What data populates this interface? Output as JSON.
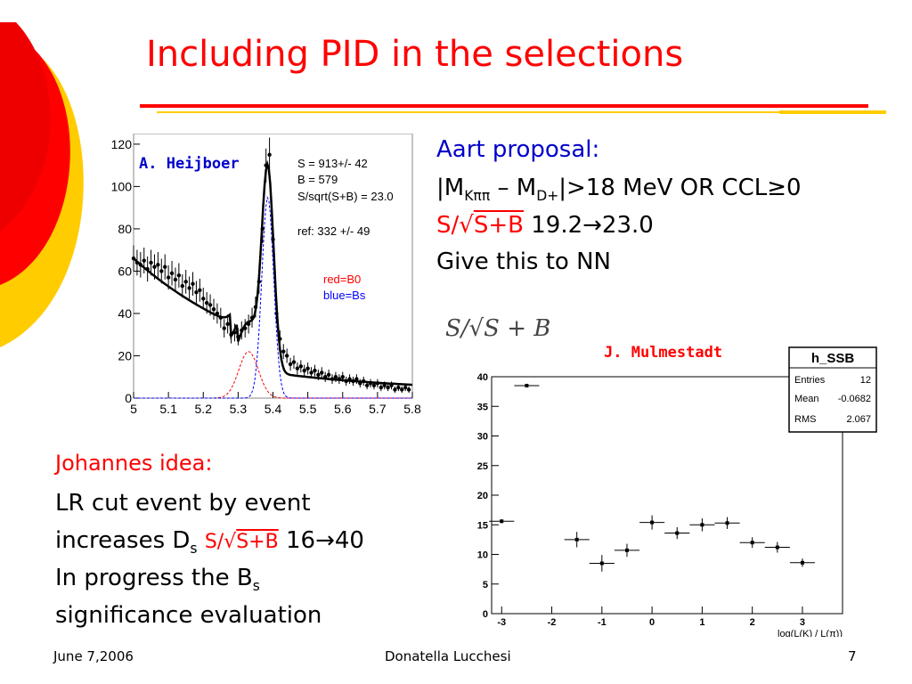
{
  "slide": {
    "title": "Including PID in the selections",
    "page_number": "7",
    "footer_date": "June 7,2006",
    "footer_author": "Donatella Lucchesi",
    "accent_red": "#ff0000",
    "accent_yellow": "#ffcc00"
  },
  "aart": {
    "heading": "Aart proposal:",
    "cut_prefix": "|M",
    "cut_sub1": "Kππ",
    "cut_mid": " – M",
    "cut_sub2": "D+",
    "cut_suffix": "|>18 MeV OR CCL≥0",
    "ratio_label": "S/√",
    "ratio_den": "S+B",
    "ratio_value": "19.2→23.0",
    "line4": "Give this to NN"
  },
  "johannes": {
    "heading": "Johannes idea:",
    "line1": "LR cut event by event",
    "line2_prefix": "increases D",
    "line2_sub": "s",
    "ratio_label": "S/√",
    "ratio_den": "S+B",
    "ratio_value": "16→40",
    "line3_prefix": "In progress the B",
    "line3_sub": "s",
    "line4": "significance evaluation"
  },
  "fig1": {
    "author_label": "A. Heijboer",
    "stats": [
      "S =  913+/- 42",
      "B =  579",
      "S/sqrt(S+B) = 23.0"
    ],
    "ref": "ref: 332 +/- 49",
    "legend_red": "red=B0",
    "legend_blue": "blue=Bs",
    "chart_data": {
      "type": "scatter",
      "xlim": [
        5.0,
        5.8
      ],
      "ylim": [
        0,
        125
      ],
      "x_ticks": [
        "5",
        "5.1",
        "5.2",
        "5.3",
        "5.4",
        "5.5",
        "5.6",
        "5.7",
        "5.8"
      ],
      "y_ticks": [
        "0",
        "20",
        "40",
        "60",
        "80",
        "100",
        "120"
      ],
      "points": [
        [
          5.0,
          66
        ],
        [
          5.01,
          64
        ],
        [
          5.02,
          63
        ],
        [
          5.03,
          65
        ],
        [
          5.04,
          61
        ],
        [
          5.05,
          64
        ],
        [
          5.06,
          62
        ],
        [
          5.07,
          63
        ],
        [
          5.08,
          60
        ],
        [
          5.09,
          62
        ],
        [
          5.1,
          57
        ],
        [
          5.11,
          59
        ],
        [
          5.12,
          56
        ],
        [
          5.13,
          58
        ],
        [
          5.14,
          53
        ],
        [
          5.15,
          55
        ],
        [
          5.16,
          52
        ],
        [
          5.17,
          54
        ],
        [
          5.18,
          50
        ],
        [
          5.19,
          51
        ],
        [
          5.2,
          47
        ],
        [
          5.21,
          45
        ],
        [
          5.22,
          44
        ],
        [
          5.23,
          42
        ],
        [
          5.24,
          40
        ],
        [
          5.25,
          38
        ],
        [
          5.26,
          33
        ],
        [
          5.27,
          35
        ],
        [
          5.28,
          30
        ],
        [
          5.29,
          31
        ],
        [
          5.3,
          29
        ],
        [
          5.31,
          32
        ],
        [
          5.32,
          33
        ],
        [
          5.33,
          35
        ],
        [
          5.34,
          38
        ],
        [
          5.35,
          43
        ],
        [
          5.36,
          55
        ],
        [
          5.37,
          80
        ],
        [
          5.38,
          110
        ],
        [
          5.39,
          115
        ],
        [
          5.4,
          75
        ],
        [
          5.41,
          40
        ],
        [
          5.42,
          28
        ],
        [
          5.43,
          22
        ],
        [
          5.44,
          20
        ],
        [
          5.45,
          16
        ],
        [
          5.46,
          17
        ],
        [
          5.47,
          14
        ],
        [
          5.48,
          15
        ],
        [
          5.49,
          13
        ],
        [
          5.5,
          14
        ],
        [
          5.51,
          12
        ],
        [
          5.52,
          13
        ],
        [
          5.53,
          11
        ],
        [
          5.54,
          12
        ],
        [
          5.55,
          10
        ],
        [
          5.56,
          11
        ],
        [
          5.57,
          9
        ],
        [
          5.58,
          10
        ],
        [
          5.59,
          9
        ],
        [
          5.6,
          10
        ],
        [
          5.61,
          8
        ],
        [
          5.62,
          9
        ],
        [
          5.63,
          8
        ],
        [
          5.64,
          9
        ],
        [
          5.65,
          7
        ],
        [
          5.66,
          8
        ],
        [
          5.67,
          6
        ],
        [
          5.68,
          7
        ],
        [
          5.69,
          6
        ],
        [
          5.7,
          7
        ],
        [
          5.71,
          5
        ],
        [
          5.72,
          6
        ],
        [
          5.73,
          5
        ],
        [
          5.74,
          6
        ],
        [
          5.75,
          4
        ],
        [
          5.76,
          5
        ],
        [
          5.77,
          4
        ],
        [
          5.78,
          5
        ],
        [
          5.79,
          4
        ]
      ],
      "series_colors": {
        "data": "#000000",
        "B0": "#ff0000",
        "Bs": "#0000ff"
      }
    }
  },
  "eqn_image_text": "S/√S + B",
  "fig2": {
    "author_label": "J. Mulmestadt",
    "stats_title": "h_SSB",
    "stats_rows": [
      [
        "Entries",
        "12"
      ],
      [
        "Mean",
        "-0.0682"
      ],
      [
        "RMS",
        "2.067"
      ]
    ],
    "xlabel": "log(L(K) / L(π))",
    "chart_data": {
      "type": "scatter",
      "xlim": [
        -3.2,
        3.8
      ],
      "ylim": [
        0,
        40
      ],
      "x_ticks": [
        "-3",
        "-2",
        "-1",
        "0",
        "1",
        "2",
        "3"
      ],
      "y_ticks": [
        "0",
        "5",
        "10",
        "15",
        "20",
        "25",
        "30",
        "35",
        "40"
      ],
      "points": [
        {
          "x": -3.0,
          "y": 15.6,
          "xerr": 0.25,
          "yerr": 0.3
        },
        {
          "x": -2.5,
          "y": 38.5,
          "xerr": 0.25,
          "yerr": 0.3
        },
        {
          "x": -1.5,
          "y": 12.5,
          "xerr": 0.25,
          "yerr": 1.3
        },
        {
          "x": -1.0,
          "y": 8.5,
          "xerr": 0.25,
          "yerr": 1.4
        },
        {
          "x": -0.5,
          "y": 10.7,
          "xerr": 0.25,
          "yerr": 1.1
        },
        {
          "x": 0.0,
          "y": 15.4,
          "xerr": 0.25,
          "yerr": 1.2
        },
        {
          "x": 0.5,
          "y": 13.6,
          "xerr": 0.25,
          "yerr": 1.0
        },
        {
          "x": 1.0,
          "y": 15.0,
          "xerr": 0.25,
          "yerr": 1.1
        },
        {
          "x": 1.5,
          "y": 15.3,
          "xerr": 0.25,
          "yerr": 1.0
        },
        {
          "x": 2.0,
          "y": 12.0,
          "xerr": 0.25,
          "yerr": 0.9
        },
        {
          "x": 2.5,
          "y": 11.2,
          "xerr": 0.25,
          "yerr": 0.9
        },
        {
          "x": 3.0,
          "y": 8.6,
          "xerr": 0.25,
          "yerr": 0.7
        }
      ]
    }
  }
}
